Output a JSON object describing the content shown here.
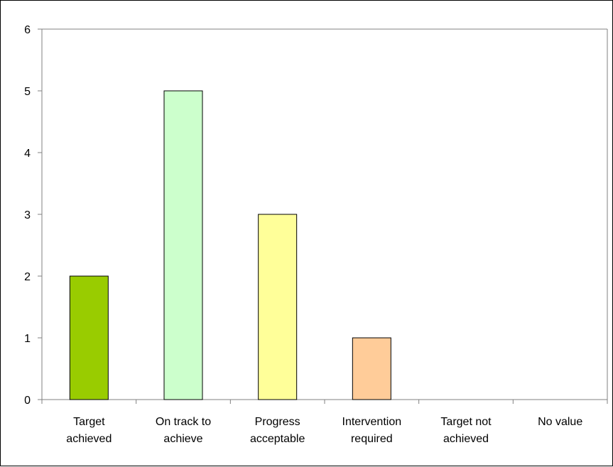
{
  "chart_data": {
    "type": "bar",
    "categories": [
      [
        "Target",
        "achieved"
      ],
      [
        "On track to",
        "achieve"
      ],
      [
        "Progress",
        "acceptable"
      ],
      [
        "Intervention",
        "required"
      ],
      [
        "Target not",
        "achieved"
      ],
      [
        "No value"
      ]
    ],
    "values": [
      2,
      5,
      3,
      1,
      0,
      0
    ],
    "colors": [
      "#99CC00",
      "#CCFFCC",
      "#FFFF99",
      "#FFCC99",
      "#FFFFFF",
      "#FFFFFF"
    ],
    "ylim": [
      0,
      6
    ],
    "yticks": [
      0,
      1,
      2,
      3,
      4,
      5,
      6
    ],
    "title": "",
    "xlabel": "",
    "ylabel": "",
    "grid": false,
    "legend": "none"
  }
}
